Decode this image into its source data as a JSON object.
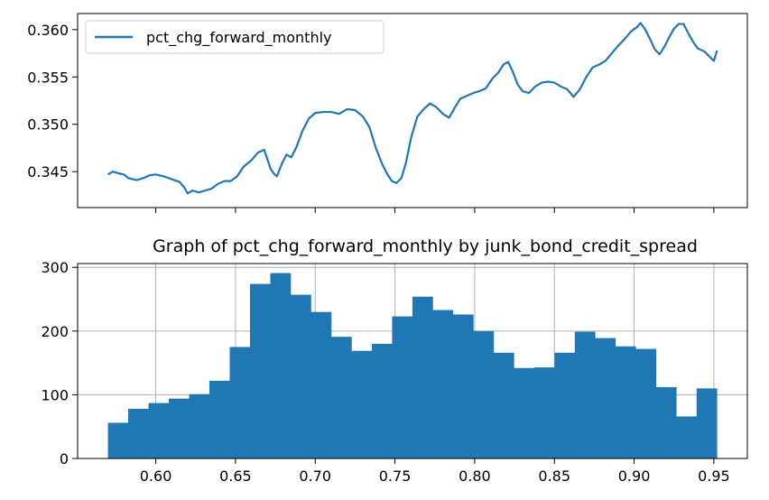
{
  "chart_data": [
    {
      "type": "line",
      "legend_location": "upper left",
      "grid": false,
      "xlabel": "",
      "ylabel": "",
      "xlim": [
        0.551,
        0.971
      ],
      "ylim": [
        0.3412,
        0.3617
      ],
      "x_ticks": [
        0.6,
        0.65,
        0.7,
        0.75,
        0.8,
        0.85,
        0.9,
        0.95
      ],
      "y_ticks": [
        0.345,
        0.35,
        0.355,
        0.36
      ],
      "y_tick_labels": [
        "0.345",
        "0.350",
        "0.355",
        "0.360"
      ],
      "series": [
        {
          "name": "pct_chg_forward_monthly",
          "color": "#1f77b4",
          "points": [
            [
              0.57,
              0.3447
            ],
            [
              0.573,
              0.345
            ],
            [
              0.577,
              0.3448
            ],
            [
              0.58,
              0.3447
            ],
            [
              0.583,
              0.3443
            ],
            [
              0.588,
              0.3441
            ],
            [
              0.592,
              0.3443
            ],
            [
              0.596,
              0.3446
            ],
            [
              0.6,
              0.3447
            ],
            [
              0.605,
              0.3445
            ],
            [
              0.61,
              0.3442
            ],
            [
              0.615,
              0.3439
            ],
            [
              0.618,
              0.3433
            ],
            [
              0.62,
              0.3427
            ],
            [
              0.623,
              0.343
            ],
            [
              0.627,
              0.3428
            ],
            [
              0.631,
              0.343
            ],
            [
              0.635,
              0.3432
            ],
            [
              0.639,
              0.3437
            ],
            [
              0.643,
              0.344
            ],
            [
              0.647,
              0.344
            ],
            [
              0.651,
              0.3445
            ],
            [
              0.655,
              0.3455
            ],
            [
              0.66,
              0.3462
            ],
            [
              0.664,
              0.347
            ],
            [
              0.668,
              0.3473
            ],
            [
              0.67,
              0.3463
            ],
            [
              0.672,
              0.3453
            ],
            [
              0.674,
              0.3448
            ],
            [
              0.676,
              0.3445
            ],
            [
              0.679,
              0.3458
            ],
            [
              0.682,
              0.3468
            ],
            [
              0.685,
              0.3465
            ],
            [
              0.688,
              0.3475
            ],
            [
              0.692,
              0.3493
            ],
            [
              0.696,
              0.3506
            ],
            [
              0.7,
              0.3512
            ],
            [
              0.705,
              0.3513
            ],
            [
              0.71,
              0.3513
            ],
            [
              0.715,
              0.3511
            ],
            [
              0.72,
              0.3516
            ],
            [
              0.725,
              0.3515
            ],
            [
              0.73,
              0.3508
            ],
            [
              0.734,
              0.3497
            ],
            [
              0.738,
              0.3475
            ],
            [
              0.742,
              0.3458
            ],
            [
              0.745,
              0.3448
            ],
            [
              0.748,
              0.344
            ],
            [
              0.751,
              0.3438
            ],
            [
              0.754,
              0.3443
            ],
            [
              0.757,
              0.346
            ],
            [
              0.76,
              0.3485
            ],
            [
              0.764,
              0.3508
            ],
            [
              0.768,
              0.3516
            ],
            [
              0.772,
              0.3522
            ],
            [
              0.776,
              0.3518
            ],
            [
              0.78,
              0.3511
            ],
            [
              0.784,
              0.3507
            ],
            [
              0.788,
              0.3519
            ],
            [
              0.791,
              0.3527
            ],
            [
              0.795,
              0.353
            ],
            [
              0.799,
              0.3533
            ],
            [
              0.803,
              0.3535
            ],
            [
              0.807,
              0.3538
            ],
            [
              0.811,
              0.3548
            ],
            [
              0.815,
              0.3555
            ],
            [
              0.818,
              0.3563
            ],
            [
              0.821,
              0.3566
            ],
            [
              0.824,
              0.3555
            ],
            [
              0.827,
              0.3542
            ],
            [
              0.83,
              0.3535
            ],
            [
              0.834,
              0.3533
            ],
            [
              0.838,
              0.354
            ],
            [
              0.842,
              0.3544
            ],
            [
              0.846,
              0.3545
            ],
            [
              0.85,
              0.3544
            ],
            [
              0.854,
              0.354
            ],
            [
              0.858,
              0.3537
            ],
            [
              0.862,
              0.3529
            ],
            [
              0.866,
              0.3537
            ],
            [
              0.87,
              0.355
            ],
            [
              0.874,
              0.356
            ],
            [
              0.878,
              0.3563
            ],
            [
              0.882,
              0.3567
            ],
            [
              0.886,
              0.3575
            ],
            [
              0.89,
              0.3583
            ],
            [
              0.894,
              0.359
            ],
            [
              0.898,
              0.3598
            ],
            [
              0.902,
              0.3603
            ],
            [
              0.904,
              0.3607
            ],
            [
              0.907,
              0.36
            ],
            [
              0.91,
              0.359
            ],
            [
              0.913,
              0.3579
            ],
            [
              0.916,
              0.3574
            ],
            [
              0.919,
              0.3582
            ],
            [
              0.922,
              0.3592
            ],
            [
              0.925,
              0.3601
            ],
            [
              0.928,
              0.3606
            ],
            [
              0.931,
              0.3606
            ],
            [
              0.934,
              0.3596
            ],
            [
              0.937,
              0.3587
            ],
            [
              0.94,
              0.358
            ],
            [
              0.944,
              0.3577
            ],
            [
              0.947,
              0.3572
            ],
            [
              0.95,
              0.3567
            ],
            [
              0.952,
              0.3578
            ]
          ]
        }
      ]
    },
    {
      "type": "bar",
      "title": "Graph of pct_chg_forward_monthly by junk_bond_credit_spread",
      "grid": true,
      "xlabel": "",
      "ylabel": "",
      "xlim": [
        0.551,
        0.971
      ],
      "ylim": [
        0,
        306
      ],
      "x_ticks": [
        0.6,
        0.65,
        0.7,
        0.75,
        0.8,
        0.85,
        0.9,
        0.95
      ],
      "x_tick_labels": [
        "0.60",
        "0.65",
        "0.70",
        "0.75",
        "0.80",
        "0.85",
        "0.90",
        "0.95"
      ],
      "y_ticks": [
        0,
        100,
        200,
        300
      ],
      "bin_start": 0.57,
      "bin_width": 0.01273,
      "color": "#1f77b4",
      "values": [
        56,
        78,
        87,
        94,
        101,
        122,
        175,
        274,
        291,
        257,
        230,
        191,
        169,
        180,
        223,
        254,
        233,
        226,
        200,
        166,
        142,
        143,
        166,
        199,
        189,
        176,
        172,
        112,
        66,
        110
      ]
    }
  ]
}
